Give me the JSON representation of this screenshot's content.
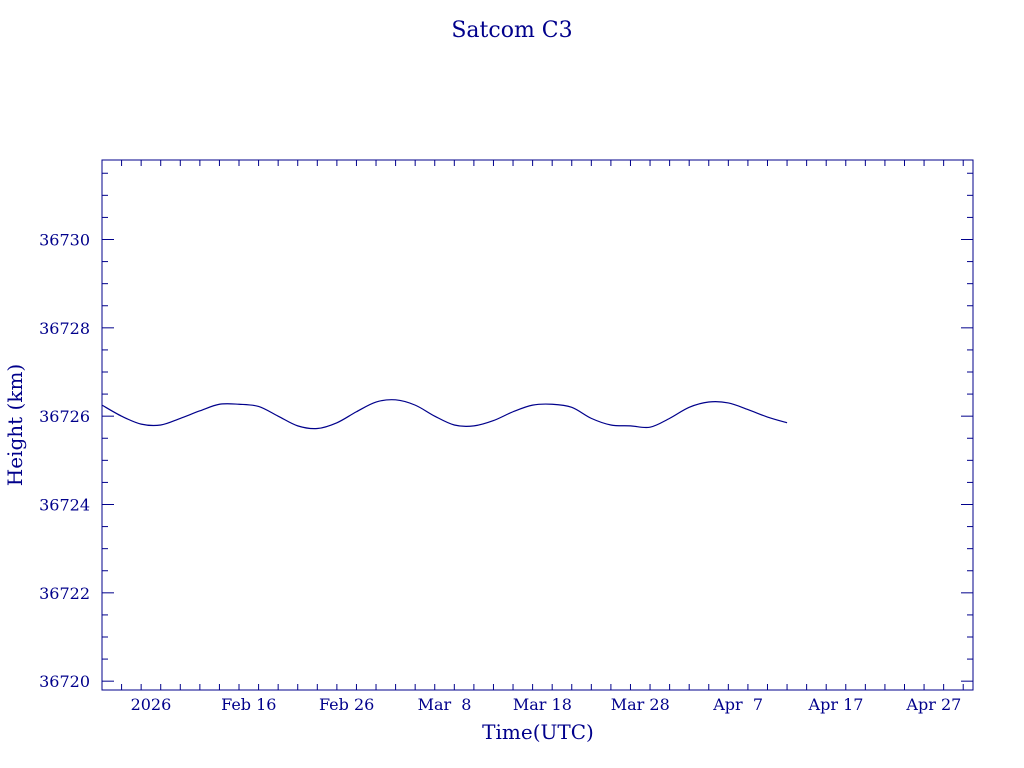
{
  "chart_data": {
    "type": "line",
    "title": "Satcom C3",
    "xlabel": "Time(UTC)",
    "ylabel": "Height (km)",
    "color": "#00008b",
    "grid": false,
    "legend": "none",
    "x_range": [
      "2026-02-01",
      "2026-05-01"
    ],
    "ylim": [
      36719.8,
      36731.8
    ],
    "y_ticks": [
      36720,
      36722,
      36724,
      36726,
      36728,
      36730
    ],
    "y_tick_labels": [
      "36720",
      "36722",
      "36724",
      "36726",
      "36728",
      "36730"
    ],
    "x_ticks": [
      {
        "date": "2026-02-06",
        "label": "2026"
      },
      {
        "date": "2026-02-16",
        "label": "Feb 16"
      },
      {
        "date": "2026-02-26",
        "label": "Feb 26"
      },
      {
        "date": "2026-03-08",
        "label": "Mar  8"
      },
      {
        "date": "2026-03-18",
        "label": "Mar 18"
      },
      {
        "date": "2026-03-28",
        "label": "Mar 28"
      },
      {
        "date": "2026-04-07",
        "label": "Apr  7"
      },
      {
        "date": "2026-04-17",
        "label": "Apr 17"
      },
      {
        "date": "2026-04-27",
        "label": "Apr 27"
      }
    ],
    "series": [
      {
        "x": [
          "2026-02-01",
          "2026-02-03",
          "2026-02-05",
          "2026-02-07",
          "2026-02-09",
          "2026-02-11",
          "2026-02-13",
          "2026-02-15",
          "2026-02-17",
          "2026-02-19",
          "2026-02-21",
          "2026-02-23",
          "2026-02-25",
          "2026-02-27",
          "2026-03-01",
          "2026-03-03",
          "2026-03-05",
          "2026-03-07",
          "2026-03-09",
          "2026-03-11",
          "2026-03-13",
          "2026-03-15",
          "2026-03-17",
          "2026-03-19",
          "2026-03-21",
          "2026-03-23",
          "2026-03-25",
          "2026-03-27",
          "2026-03-29",
          "2026-03-31",
          "2026-04-02",
          "2026-04-04",
          "2026-04-06",
          "2026-04-08",
          "2026-04-10",
          "2026-04-12"
        ],
        "y": [
          36726.25,
          36726.0,
          36725.82,
          36725.8,
          36725.95,
          36726.12,
          36726.27,
          36726.27,
          36726.22,
          36726.0,
          36725.78,
          36725.72,
          36725.85,
          36726.1,
          36726.32,
          36726.37,
          36726.25,
          36726.0,
          36725.8,
          36725.78,
          36725.9,
          36726.1,
          36726.25,
          36726.27,
          36726.2,
          36725.95,
          36725.8,
          36725.78,
          36725.75,
          36725.95,
          36726.2,
          36726.32,
          36726.3,
          36726.15,
          36725.98,
          36725.85
        ]
      }
    ]
  }
}
